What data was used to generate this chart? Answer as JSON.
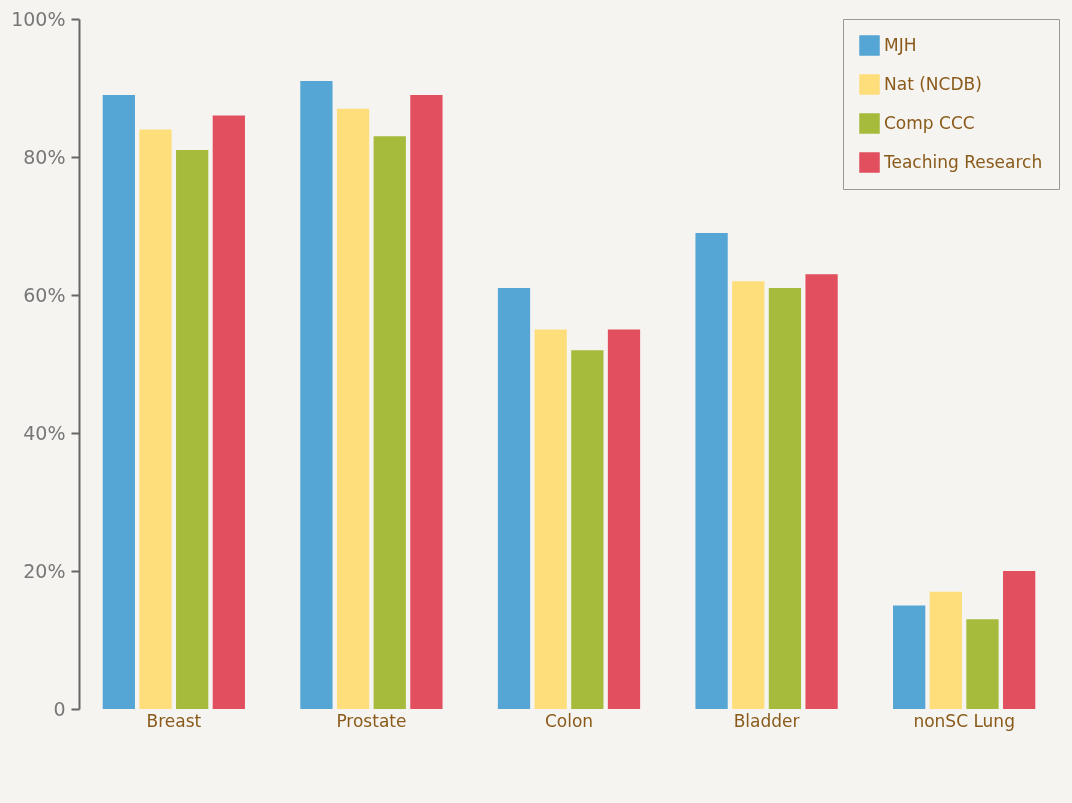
{
  "chart_data": {
    "type": "bar",
    "categories": [
      "Breast",
      "Prostate",
      "Colon",
      "Bladder",
      "nonSC Lung"
    ],
    "series": [
      {
        "name": "MJH",
        "color": "#55a5d5",
        "values": [
          89,
          91,
          61,
          69,
          15
        ]
      },
      {
        "name": "Nat (NCDB)",
        "color": "#fede7a",
        "values": [
          84,
          87,
          55,
          62,
          17
        ]
      },
      {
        "name": "Comp CCC",
        "color": "#a6ba3c",
        "values": [
          81,
          83,
          52,
          61,
          13
        ]
      },
      {
        "name": "Teaching Research",
        "color": "#e24f5e",
        "values": [
          86,
          89,
          55,
          63,
          20
        ]
      }
    ],
    "ylim": [
      0,
      100
    ],
    "yticks": [
      0,
      {
        "value": 20,
        "label": "20%"
      },
      {
        "value": 40,
        "label": "40%"
      },
      {
        "value": 60,
        "label": "60%"
      },
      {
        "value": 80,
        "label": "80%"
      },
      {
        "value": 100,
        "label": "100%"
      }
    ],
    "grid": false,
    "legend": "top right"
  }
}
